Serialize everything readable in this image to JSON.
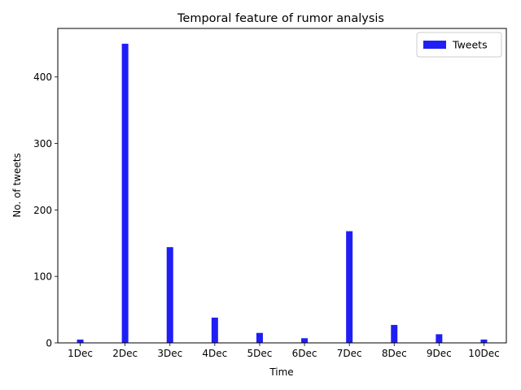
{
  "chart_data": {
    "type": "bar",
    "title": "Temporal feature of rumor analysis",
    "xlabel": "Time",
    "ylabel": "No. of tweets",
    "categories": [
      "1Dec",
      "2Dec",
      "3Dec",
      "4Dec",
      "5Dec",
      "6Dec",
      "7Dec",
      "8Dec",
      "9Dec",
      "10Dec"
    ],
    "series": [
      {
        "name": "Tweets",
        "values": [
          5,
          450,
          144,
          38,
          15,
          7,
          168,
          27,
          13,
          5
        ],
        "color": "#1f1ff5"
      }
    ],
    "ylim": [
      0,
      473
    ],
    "yticks": [
      0,
      100,
      200,
      300,
      400
    ],
    "grid": false,
    "legend": "top-right"
  }
}
